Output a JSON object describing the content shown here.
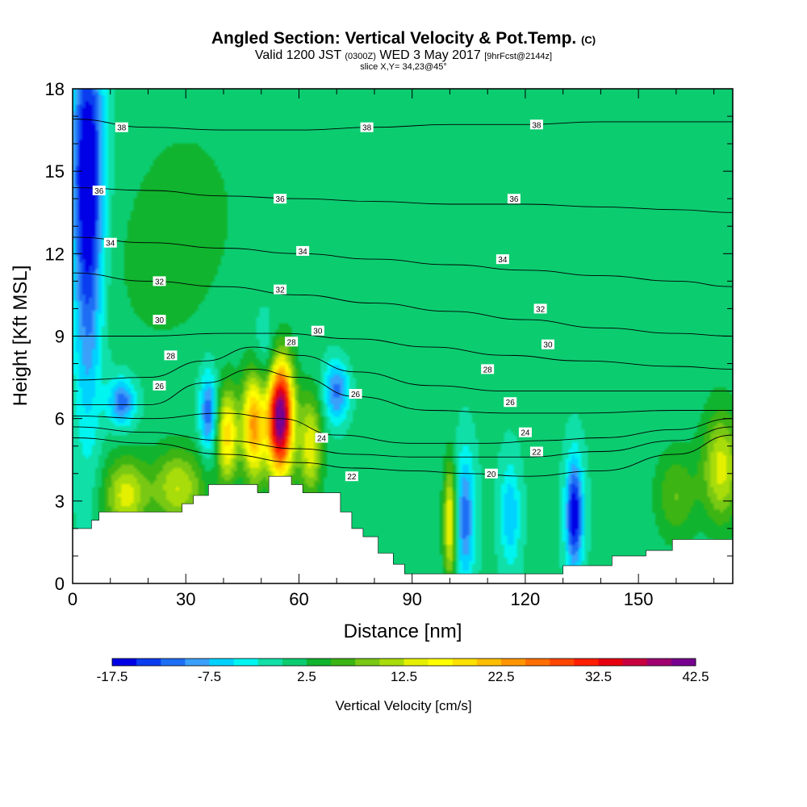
{
  "title": {
    "main": "Angled Section: Vertical Velocity & Pot.Temp.",
    "main_suffix": "(C)",
    "valid_prefix": "Valid 1200 JST",
    "valid_utc": "(0300Z)",
    "valid_date": "WED 3 May 2017",
    "forecast": "[9hrFcst@2144z]",
    "slice": "slice X,Y= 34,23@45°"
  },
  "chart_data": {
    "type": "heatmap",
    "xlabel": "Distance [nm]",
    "ylabel": "Height [Kft MSL]",
    "xlim": [
      0,
      175
    ],
    "ylim": [
      0,
      18
    ],
    "x_ticks": [
      0,
      30,
      60,
      90,
      120,
      150
    ],
    "y_ticks": [
      0,
      3,
      6,
      9,
      12,
      15,
      18
    ],
    "colorbar": {
      "label": "Vertical Velocity [cm/s]",
      "tick_labels": [
        "-17.5",
        "-7.5",
        "2.5",
        "12.5",
        "22.5",
        "32.5",
        "42.5"
      ],
      "range": [
        -17.5,
        42.5
      ],
      "step": 2.5,
      "colors": [
        "#0000e6",
        "#0a3cf0",
        "#1e6ef5",
        "#3aa0fa",
        "#00d2ff",
        "#00f5f0",
        "#10e0a8",
        "#0ccc70",
        "#10b42e",
        "#3cb414",
        "#78c814",
        "#a8dc0a",
        "#e4f000",
        "#ffff00",
        "#ffe000",
        "#ffbe00",
        "#ff9600",
        "#ff6e00",
        "#ff4600",
        "#ff1e00",
        "#e60010",
        "#c80040",
        "#a00070",
        "#780090"
      ]
    },
    "terrain_kft": [
      [
        0,
        2.0
      ],
      [
        5,
        2.0
      ],
      [
        5,
        2.3
      ],
      [
        7,
        2.3
      ],
      [
        7,
        2.6
      ],
      [
        29,
        2.6
      ],
      [
        29,
        2.9
      ],
      [
        32,
        2.9
      ],
      [
        32,
        3.2
      ],
      [
        36,
        3.2
      ],
      [
        36,
        3.6
      ],
      [
        49,
        3.6
      ],
      [
        49,
        3.3
      ],
      [
        52,
        3.3
      ],
      [
        52,
        3.9
      ],
      [
        58,
        3.9
      ],
      [
        58,
        3.6
      ],
      [
        61,
        3.6
      ],
      [
        61,
        3.3
      ],
      [
        71,
        3.3
      ],
      [
        71,
        2.6
      ],
      [
        74,
        2.6
      ],
      [
        74,
        2.0
      ],
      [
        77,
        2.0
      ],
      [
        77,
        1.7
      ],
      [
        81,
        1.7
      ],
      [
        81,
        1.1
      ],
      [
        85,
        1.1
      ],
      [
        85,
        0.7
      ],
      [
        88,
        0.7
      ],
      [
        88,
        0.35
      ],
      [
        130,
        0.35
      ],
      [
        130,
        0.65
      ],
      [
        143,
        0.65
      ],
      [
        143,
        1.0
      ],
      [
        152,
        1.0
      ],
      [
        152,
        1.2
      ],
      [
        159,
        1.2
      ],
      [
        159,
        1.6
      ],
      [
        175,
        1.6
      ]
    ],
    "contour_label": "Pot.Temp.",
    "isentropes": [
      {
        "value": 20,
        "kft": [
          [
            0,
            5.3
          ],
          [
            20,
            5.1
          ],
          [
            40,
            4.7
          ],
          [
            60,
            4.4
          ],
          [
            75,
            4.2
          ],
          [
            90,
            4.1
          ],
          [
            105,
            4.0
          ],
          [
            120,
            3.9
          ],
          [
            140,
            4.1
          ],
          [
            160,
            4.7
          ],
          [
            175,
            5.4
          ]
        ]
      },
      {
        "value": 22,
        "kft": [
          [
            0,
            5.7
          ],
          [
            20,
            5.5
          ],
          [
            40,
            5.2
          ],
          [
            60,
            4.9
          ],
          [
            75,
            4.7
          ],
          [
            90,
            4.6
          ],
          [
            105,
            4.6
          ],
          [
            120,
            4.6
          ],
          [
            140,
            4.8
          ],
          [
            160,
            5.2
          ],
          [
            175,
            5.7
          ]
        ]
      },
      {
        "value": 24,
        "kft": [
          [
            0,
            6.1
          ],
          [
            20,
            6.0
          ],
          [
            40,
            6.2
          ],
          [
            55,
            6.0
          ],
          [
            70,
            5.4
          ],
          [
            90,
            5.1
          ],
          [
            110,
            5.1
          ],
          [
            125,
            5.2
          ],
          [
            140,
            5.3
          ],
          [
            160,
            5.6
          ],
          [
            175,
            6.0
          ]
        ]
      },
      {
        "value": 26,
        "kft": [
          [
            0,
            6.5
          ],
          [
            20,
            6.5
          ],
          [
            35,
            7.3
          ],
          [
            48,
            7.8
          ],
          [
            60,
            7.5
          ],
          [
            75,
            6.8
          ],
          [
            95,
            6.3
          ],
          [
            115,
            6.2
          ],
          [
            135,
            6.2
          ],
          [
            160,
            6.3
          ],
          [
            175,
            6.3
          ]
        ]
      },
      {
        "value": 28,
        "kft": [
          [
            0,
            7.4
          ],
          [
            20,
            7.5
          ],
          [
            35,
            8.1
          ],
          [
            48,
            8.6
          ],
          [
            60,
            8.3
          ],
          [
            75,
            7.7
          ],
          [
            95,
            7.2
          ],
          [
            115,
            7.0
          ],
          [
            135,
            7.0
          ],
          [
            160,
            7.0
          ],
          [
            175,
            7.0
          ]
        ]
      },
      {
        "value": 30,
        "kft": [
          [
            0,
            9.0
          ],
          [
            20,
            9.0
          ],
          [
            40,
            9.1
          ],
          [
            55,
            9.1
          ],
          [
            75,
            8.9
          ],
          [
            95,
            8.6
          ],
          [
            115,
            8.3
          ],
          [
            135,
            8.1
          ],
          [
            160,
            7.9
          ],
          [
            175,
            7.8
          ]
        ]
      },
      {
        "value": 32,
        "kft": [
          [
            0,
            11.3
          ],
          [
            20,
            11.0
          ],
          [
            40,
            10.8
          ],
          [
            60,
            10.5
          ],
          [
            80,
            10.2
          ],
          [
            100,
            9.9
          ],
          [
            120,
            9.6
          ],
          [
            140,
            9.3
          ],
          [
            160,
            9.1
          ],
          [
            175,
            9.0
          ]
        ]
      },
      {
        "value": 34,
        "kft": [
          [
            0,
            12.6
          ],
          [
            20,
            12.4
          ],
          [
            40,
            12.2
          ],
          [
            60,
            12.0
          ],
          [
            80,
            11.8
          ],
          [
            100,
            11.6
          ],
          [
            120,
            11.4
          ],
          [
            140,
            11.2
          ],
          [
            160,
            11.0
          ],
          [
            175,
            10.8
          ]
        ]
      },
      {
        "value": 36,
        "kft": [
          [
            0,
            14.4
          ],
          [
            20,
            14.3
          ],
          [
            40,
            14.1
          ],
          [
            60,
            14.0
          ],
          [
            80,
            13.9
          ],
          [
            100,
            13.8
          ],
          [
            120,
            13.8
          ],
          [
            140,
            13.7
          ],
          [
            160,
            13.6
          ],
          [
            175,
            13.5
          ]
        ]
      },
      {
        "value": 38,
        "kft": [
          [
            0,
            16.9
          ],
          [
            20,
            16.6
          ],
          [
            40,
            16.5
          ],
          [
            60,
            16.5
          ],
          [
            80,
            16.6
          ],
          [
            100,
            16.7
          ],
          [
            120,
            16.7
          ],
          [
            140,
            16.8
          ],
          [
            160,
            16.8
          ],
          [
            175,
            16.8
          ]
        ]
      }
    ],
    "contour_labels": [
      {
        "value": 38,
        "x": 13,
        "y": 16.6
      },
      {
        "value": 38,
        "x": 78,
        "y": 16.6
      },
      {
        "value": 38,
        "x": 123,
        "y": 16.7
      },
      {
        "value": 36,
        "x": 7,
        "y": 14.3
      },
      {
        "value": 36,
        "x": 55,
        "y": 14.0
      },
      {
        "value": 36,
        "x": 117,
        "y": 14.0
      },
      {
        "value": 34,
        "x": 10,
        "y": 12.4
      },
      {
        "value": 34,
        "x": 61,
        "y": 12.1
      },
      {
        "value": 34,
        "x": 114,
        "y": 11.8
      },
      {
        "value": 32,
        "x": 23,
        "y": 11.0
      },
      {
        "value": 32,
        "x": 55,
        "y": 10.7
      },
      {
        "value": 32,
        "x": 124,
        "y": 10.0
      },
      {
        "value": 30,
        "x": 23,
        "y": 9.6
      },
      {
        "value": 30,
        "x": 65,
        "y": 9.2
      },
      {
        "value": 30,
        "x": 126,
        "y": 8.7
      },
      {
        "value": 28,
        "x": 26,
        "y": 8.3
      },
      {
        "value": 28,
        "x": 58,
        "y": 8.8
      },
      {
        "value": 28,
        "x": 110,
        "y": 7.8
      },
      {
        "value": 26,
        "x": 23,
        "y": 7.2
      },
      {
        "value": 26,
        "x": 75,
        "y": 6.9
      },
      {
        "value": 26,
        "x": 116,
        "y": 6.6
      },
      {
        "value": 24,
        "x": 66,
        "y": 5.3
      },
      {
        "value": 24,
        "x": 120,
        "y": 5.5
      },
      {
        "value": 22,
        "x": 74,
        "y": 3.9
      },
      {
        "value": 22,
        "x": 123,
        "y": 4.8
      },
      {
        "value": 20,
        "x": 111,
        "y": 4.0
      }
    ],
    "velocity_features_cm_s": [
      {
        "x": 55,
        "y": 6.1,
        "sx": 2.4,
        "sy": 1.5,
        "value": 44
      },
      {
        "x": 48,
        "y": 5.8,
        "sx": 2.2,
        "sy": 1.4,
        "value": 23
      },
      {
        "x": 41,
        "y": 5.4,
        "sx": 2.0,
        "sy": 1.2,
        "value": 18
      },
      {
        "x": 63,
        "y": 5.0,
        "sx": 2.2,
        "sy": 1.3,
        "value": 14
      },
      {
        "x": 36,
        "y": 6.2,
        "sx": 1.6,
        "sy": 1.0,
        "value": -13
      },
      {
        "x": 52,
        "y": 8.0,
        "sx": 3.0,
        "sy": 1.2,
        "value": -6
      },
      {
        "x": 70,
        "y": 7.0,
        "sx": 2.4,
        "sy": 0.8,
        "value": -12
      },
      {
        "x": 13,
        "y": 6.6,
        "sx": 2.5,
        "sy": 0.6,
        "value": -12
      },
      {
        "x": 28,
        "y": 3.5,
        "sx": 5.0,
        "sy": 1.0,
        "value": 12
      },
      {
        "x": 14,
        "y": 3.2,
        "sx": 4.0,
        "sy": 1.0,
        "value": 13
      },
      {
        "x": 4,
        "y": 15.5,
        "sx": 3.0,
        "sy": 3.5,
        "value": -17
      },
      {
        "x": 4,
        "y": 10.0,
        "sx": 2.5,
        "sy": 4.0,
        "value": -8
      },
      {
        "x": 100,
        "y": 2.2,
        "sx": 1.2,
        "sy": 1.5,
        "value": 16
      },
      {
        "x": 104,
        "y": 2.4,
        "sx": 1.8,
        "sy": 1.6,
        "value": -12
      },
      {
        "x": 116,
        "y": 2.5,
        "sx": 1.8,
        "sy": 1.3,
        "value": -8
      },
      {
        "x": 133,
        "y": 2.5,
        "sx": 1.6,
        "sy": 1.4,
        "value": -18
      },
      {
        "x": 172,
        "y": 4.2,
        "sx": 3.5,
        "sy": 1.4,
        "value": 13
      },
      {
        "x": 160,
        "y": 3.2,
        "sx": 4.0,
        "sy": 1.2,
        "value": 7
      },
      {
        "x": 30,
        "y": 13.5,
        "sx": 12,
        "sy": 2.8,
        "value": 3
      },
      {
        "x": 22,
        "y": 11.0,
        "sx": 8,
        "sy": 1.8,
        "value": 2
      },
      {
        "x": 75,
        "y": 12.0,
        "sx": 6,
        "sy": 5,
        "value": 1.5
      },
      {
        "x": 140,
        "y": 10.0,
        "sx": 6,
        "sy": 1.5,
        "value": 2
      },
      {
        "x": 170,
        "y": 12.0,
        "sx": 4,
        "sy": 4,
        "value": 1.5
      }
    ],
    "velocity_background_cm_s": 0.5
  }
}
